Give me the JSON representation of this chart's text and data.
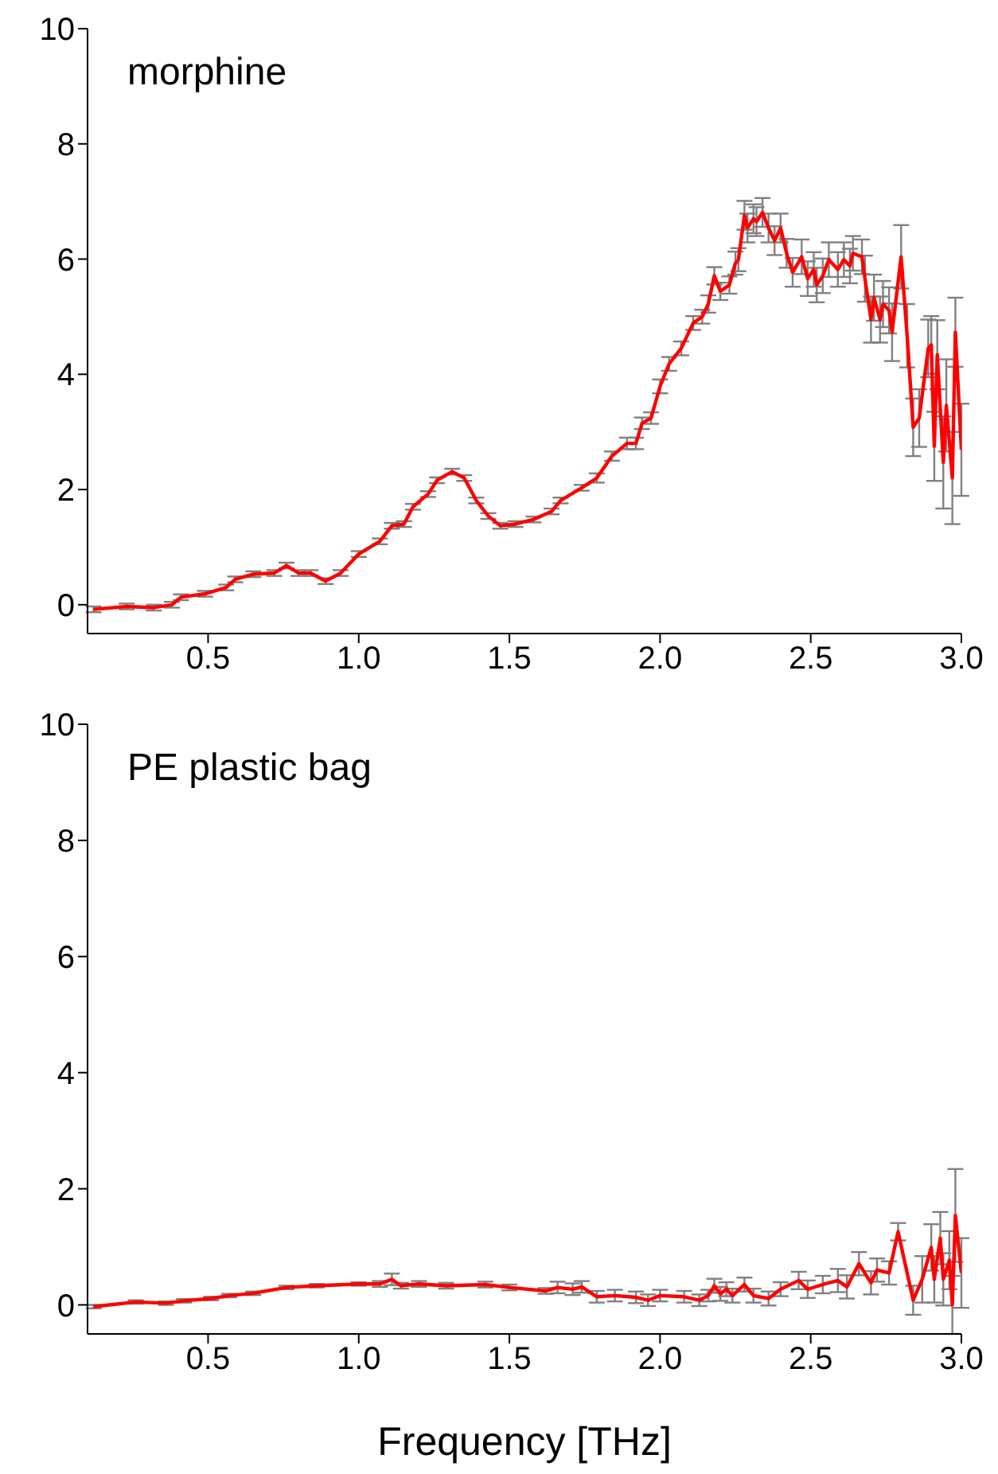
{
  "chart_data": [
    {
      "type": "line",
      "title": "morphine",
      "xlim": [
        0.1,
        3.0
      ],
      "xticks": [
        0.5,
        {
          "value": 1,
          "label": "1.0"
        },
        1.5,
        {
          "value": 2,
          "label": "2.0"
        },
        2.5,
        {
          "value": 3,
          "label": "3.0"
        }
      ],
      "ylim": [
        -0.5,
        10
      ],
      "yticks": [
        0,
        2,
        4,
        6,
        8,
        10
      ],
      "x": [
        0.12,
        0.23,
        0.32,
        0.38,
        0.41,
        0.49,
        0.56,
        0.59,
        0.65,
        0.72,
        0.76,
        0.8,
        0.84,
        0.89,
        0.94,
        1.0,
        1.07,
        1.11,
        1.15,
        1.18,
        1.23,
        1.26,
        1.31,
        1.35,
        1.39,
        1.43,
        1.47,
        1.52,
        1.58,
        1.64,
        1.67,
        1.74,
        1.79,
        1.84,
        1.89,
        1.92,
        1.94,
        1.97,
        2.0,
        2.03,
        2.07,
        2.11,
        2.14,
        2.16,
        2.18,
        2.2,
        2.23,
        2.25,
        2.26,
        2.28,
        2.29,
        2.31,
        2.32,
        2.34,
        2.36,
        2.38,
        2.4,
        2.42,
        2.44,
        2.47,
        2.49,
        2.51,
        2.52,
        2.54,
        2.56,
        2.59,
        2.61,
        2.63,
        2.64,
        2.67,
        2.68,
        2.7,
        2.71,
        2.73,
        2.74,
        2.76,
        2.77,
        2.8,
        2.82,
        2.84,
        2.86,
        2.89,
        2.9,
        2.91,
        2.92,
        2.94,
        2.95,
        2.97,
        2.98,
        3.0
      ],
      "series": [
        {
          "color": "#ff0000",
          "values": [
            -0.08,
            -0.03,
            -0.05,
            0,
            0.13,
            0.19,
            0.3,
            0.44,
            0.53,
            0.55,
            0.68,
            0.55,
            0.55,
            0.41,
            0.55,
            0.88,
            1.1,
            1.37,
            1.4,
            1.7,
            1.92,
            2.16,
            2.31,
            2.2,
            1.81,
            1.54,
            1.37,
            1.4,
            1.48,
            1.62,
            1.81,
            2.03,
            2.2,
            2.58,
            2.8,
            2.8,
            3.15,
            3.24,
            3.79,
            4.18,
            4.45,
            4.89,
            5.0,
            5.22,
            5.71,
            5.44,
            5.55,
            5.93,
            5.99,
            6.76,
            6.54,
            6.7,
            6.65,
            6.81,
            6.54,
            6.32,
            6.54,
            6.1,
            5.77,
            6.04,
            5.66,
            5.82,
            5.55,
            5.71,
            5.99,
            5.82,
            5.99,
            5.88,
            6.1,
            6.04,
            5.66,
            4.95,
            5.33,
            4.95,
            5.22,
            5.11,
            4.73,
            6.04,
            4.67,
            3.08,
            3.24,
            4.45,
            4.51,
            2.75,
            4.34,
            2.47,
            3.46,
            2.2,
            4.73,
            2.69
          ],
          "errors": [
            0.05,
            0.05,
            0.05,
            0.05,
            0.05,
            0.05,
            0.05,
            0.05,
            0.05,
            0.05,
            0.05,
            0.05,
            0.05,
            0.05,
            0.05,
            0.05,
            0.05,
            0.05,
            0.05,
            0.05,
            0.05,
            0.05,
            0.05,
            0.05,
            0.05,
            0.05,
            0.05,
            0.05,
            0.05,
            0.05,
            0.05,
            0.05,
            0.08,
            0.08,
            0.1,
            0.1,
            0.1,
            0.1,
            0.12,
            0.12,
            0.12,
            0.12,
            0.12,
            0.15,
            0.15,
            0.15,
            0.15,
            0.2,
            0.2,
            0.25,
            0.25,
            0.25,
            0.25,
            0.25,
            0.25,
            0.25,
            0.25,
            0.25,
            0.25,
            0.3,
            0.3,
            0.3,
            0.3,
            0.3,
            0.3,
            0.3,
            0.3,
            0.3,
            0.3,
            0.3,
            0.4,
            0.4,
            0.4,
            0.4,
            0.4,
            0.4,
            0.5,
            0.55,
            0.55,
            0.5,
            0.5,
            0.5,
            0.5,
            0.6,
            0.6,
            0.8,
            0.8,
            0.8,
            0.6,
            0.8
          ]
        }
      ]
    },
    {
      "type": "line",
      "title": "PE plastic bag",
      "xlabel": "Frequency [THz]",
      "xlim": [
        0.1,
        3.0
      ],
      "xticks": [
        0.5,
        {
          "value": 1,
          "label": "1.0"
        },
        1.5,
        {
          "value": 2,
          "label": "2.0"
        },
        2.5,
        {
          "value": 3,
          "label": "3.0"
        }
      ],
      "ylim": [
        -0.5,
        10
      ],
      "yticks": [
        0,
        2,
        4,
        6,
        8,
        10
      ],
      "x": [
        0.12,
        0.26,
        0.36,
        0.42,
        0.51,
        0.57,
        0.65,
        0.76,
        0.86,
        1.0,
        1.07,
        1.11,
        1.14,
        1.2,
        1.29,
        1.42,
        1.5,
        1.62,
        1.66,
        1.71,
        1.74,
        1.79,
        1.85,
        1.92,
        1.96,
        2.0,
        2.08,
        2.13,
        2.16,
        2.18,
        2.2,
        2.22,
        2.24,
        2.28,
        2.31,
        2.36,
        2.4,
        2.46,
        2.49,
        2.54,
        2.59,
        2.62,
        2.66,
        2.7,
        2.72,
        2.76,
        2.79,
        2.84,
        2.87,
        2.9,
        2.91,
        2.93,
        2.94,
        2.96,
        2.97,
        2.98,
        3.0
      ],
      "series": [
        {
          "color": "#ff0000",
          "values": [
            -0.03,
            0.05,
            0.03,
            0.07,
            0.11,
            0.16,
            0.2,
            0.3,
            0.33,
            0.36,
            0.36,
            0.44,
            0.33,
            0.36,
            0.33,
            0.35,
            0.3,
            0.24,
            0.3,
            0.27,
            0.31,
            0.14,
            0.16,
            0.13,
            0.08,
            0.16,
            0.14,
            0.08,
            0.16,
            0.33,
            0.19,
            0.27,
            0.16,
            0.35,
            0.16,
            0.11,
            0.27,
            0.42,
            0.27,
            0.35,
            0.42,
            0.31,
            0.71,
            0.38,
            0.6,
            0.55,
            1.26,
            0.08,
            0.44,
            0.99,
            0.44,
            1.15,
            0.44,
            0.77,
            0.0,
            1.54,
            0.55
          ],
          "errors": [
            0.03,
            0.03,
            0.03,
            0.03,
            0.03,
            0.03,
            0.03,
            0.03,
            0.03,
            0.03,
            0.05,
            0.1,
            0.05,
            0.05,
            0.05,
            0.05,
            0.05,
            0.05,
            0.1,
            0.1,
            0.1,
            0.1,
            0.1,
            0.1,
            0.1,
            0.1,
            0.1,
            0.1,
            0.1,
            0.12,
            0.12,
            0.12,
            0.12,
            0.12,
            0.12,
            0.12,
            0.12,
            0.15,
            0.15,
            0.15,
            0.2,
            0.2,
            0.2,
            0.2,
            0.2,
            0.2,
            0.15,
            0.25,
            0.4,
            0.4,
            0.4,
            0.45,
            0.45,
            0.5,
            0.5,
            0.8,
            0.6
          ]
        }
      ]
    }
  ]
}
